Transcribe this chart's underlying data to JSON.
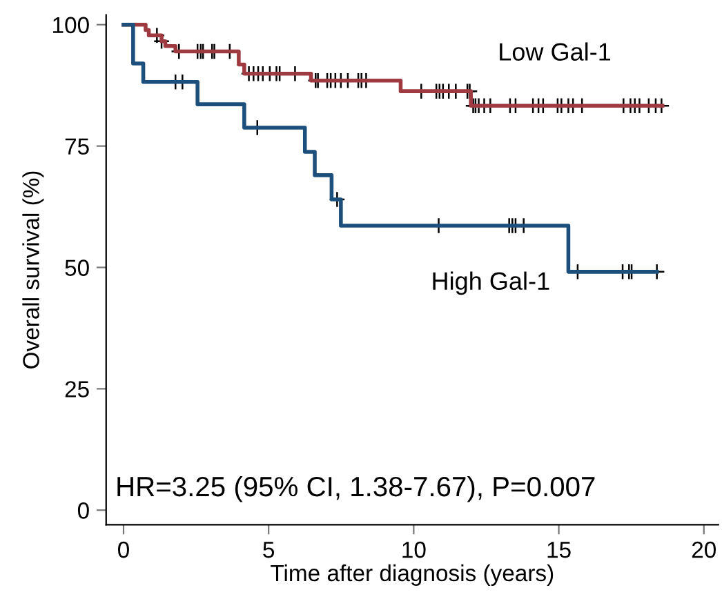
{
  "chart_data": {
    "type": "step",
    "xlabel": "Time after diagnosis (years)",
    "ylabel": "Overall survival (%)",
    "xlim": [
      -0.6,
      20.5
    ],
    "ylim": [
      -3,
      102
    ],
    "xticks": [
      0,
      5,
      10,
      15,
      20
    ],
    "yticks": [
      0,
      25,
      50,
      75,
      100
    ],
    "grid": false,
    "legend": false,
    "series": [
      {
        "name": "Low Gal-1",
        "color": "#9e3a40",
        "x": [
          0,
          0.76,
          0.87,
          1.31,
          1.44,
          1.79,
          3.97,
          4.16,
          6.46,
          9.55,
          11.97,
          18.57
        ],
        "values": [
          100,
          98.9,
          97.8,
          96.6,
          95.6,
          94.5,
          91.8,
          89.9,
          88.5,
          86.3,
          83.3,
          83.3
        ]
      },
      {
        "name": "High Gal-1",
        "color": "#1d4f7c",
        "x": [
          0,
          0.33,
          0.68,
          2.55,
          4.16,
          6.25,
          6.59,
          7.17,
          7.49,
          15.33,
          18.38
        ],
        "values": [
          100,
          92.0,
          88.2,
          83.6,
          78.8,
          73.8,
          69.0,
          64.0,
          58.6,
          49.1,
          49.1
        ]
      },
      {
        "type": "scatter",
        "marker": "cross",
        "color": "#000000",
        "x": [
          1.15,
          1.31,
          1.91,
          2.55,
          2.66,
          2.74,
          3.05,
          3.13,
          3.66,
          4.32,
          4.48,
          4.64,
          4.8,
          5.04,
          5.27,
          5.38,
          5.91,
          6.62,
          6.7,
          7.02,
          7.14,
          7.3,
          7.49,
          7.73,
          8.09,
          8.2,
          8.36,
          10.26,
          10.78,
          10.89,
          11.01,
          11.21,
          11.45,
          11.85,
          11.93,
          12.05,
          12.13,
          12.24,
          12.43,
          12.64,
          13.32,
          13.51,
          14.11,
          14.3,
          14.46,
          14.96,
          15.09,
          15.33,
          15.49,
          15.8,
          17.23,
          17.47,
          17.62,
          17.78,
          18.1,
          18.34,
          18.54
        ],
        "values": [
          97.8,
          96.6,
          94.5,
          94.5,
          94.5,
          94.5,
          94.5,
          94.5,
          94.5,
          89.9,
          89.9,
          89.9,
          89.9,
          89.9,
          89.9,
          89.9,
          89.9,
          88.5,
          88.5,
          88.5,
          88.5,
          88.5,
          88.5,
          88.5,
          88.5,
          88.5,
          88.5,
          86.3,
          86.3,
          86.3,
          86.3,
          86.3,
          86.3,
          86.3,
          86.3,
          83.3,
          83.3,
          83.3,
          83.3,
          83.3,
          83.3,
          83.3,
          83.3,
          83.3,
          83.3,
          83.3,
          83.3,
          83.3,
          83.3,
          83.3,
          83.3,
          83.3,
          83.3,
          83.3,
          83.3,
          83.3,
          83.3
        ]
      },
      {
        "type": "scatter",
        "marker": "cross",
        "color": "#000000",
        "x": [
          1.79,
          2.03,
          4.61,
          7.36,
          10.86,
          13.29,
          13.4,
          13.51,
          13.79,
          15.65,
          17.2,
          17.42,
          17.51,
          18.38
        ],
        "values": [
          88.2,
          88.2,
          78.8,
          64.0,
          58.6,
          58.6,
          58.6,
          58.6,
          58.6,
          49.1,
          49.1,
          49.1,
          49.1,
          49.1
        ]
      }
    ],
    "annotations": [
      "HR=3.25 (95% CI, 1.38-7.67), P=0.007"
    ]
  }
}
